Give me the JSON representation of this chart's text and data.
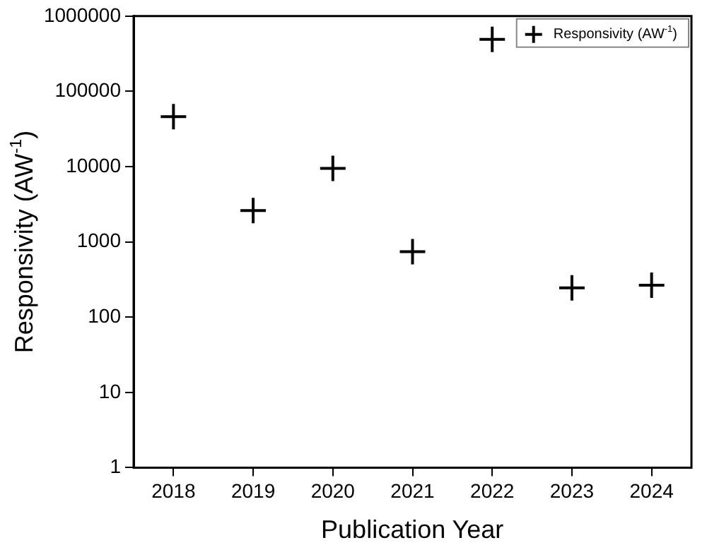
{
  "chart_data": {
    "type": "scatter",
    "xlabel": "Publication Year",
    "ylabel": "Responsivity (AW$^{-1}$)",
    "x": [
      2018,
      2019,
      2020,
      2021,
      2022,
      2023,
      2024
    ],
    "series": [
      {
        "name": "Responsivity (AW$^{-1}$)",
        "color": "#000000",
        "values": [
          46000,
          2600,
          9500,
          740,
          490000,
          245,
          265
        ]
      }
    ],
    "xlim": [
      2017.5,
      2024.5
    ],
    "xticks": [
      2018,
      2019,
      2020,
      2021,
      2022,
      2023,
      2024
    ],
    "ylim": [
      1,
      1000000
    ],
    "yticks": [
      1,
      10,
      100,
      1000,
      10000,
      100000,
      1000000
    ],
    "log": "y",
    "marker": "cross",
    "legend": "top right",
    "grid": false
  }
}
